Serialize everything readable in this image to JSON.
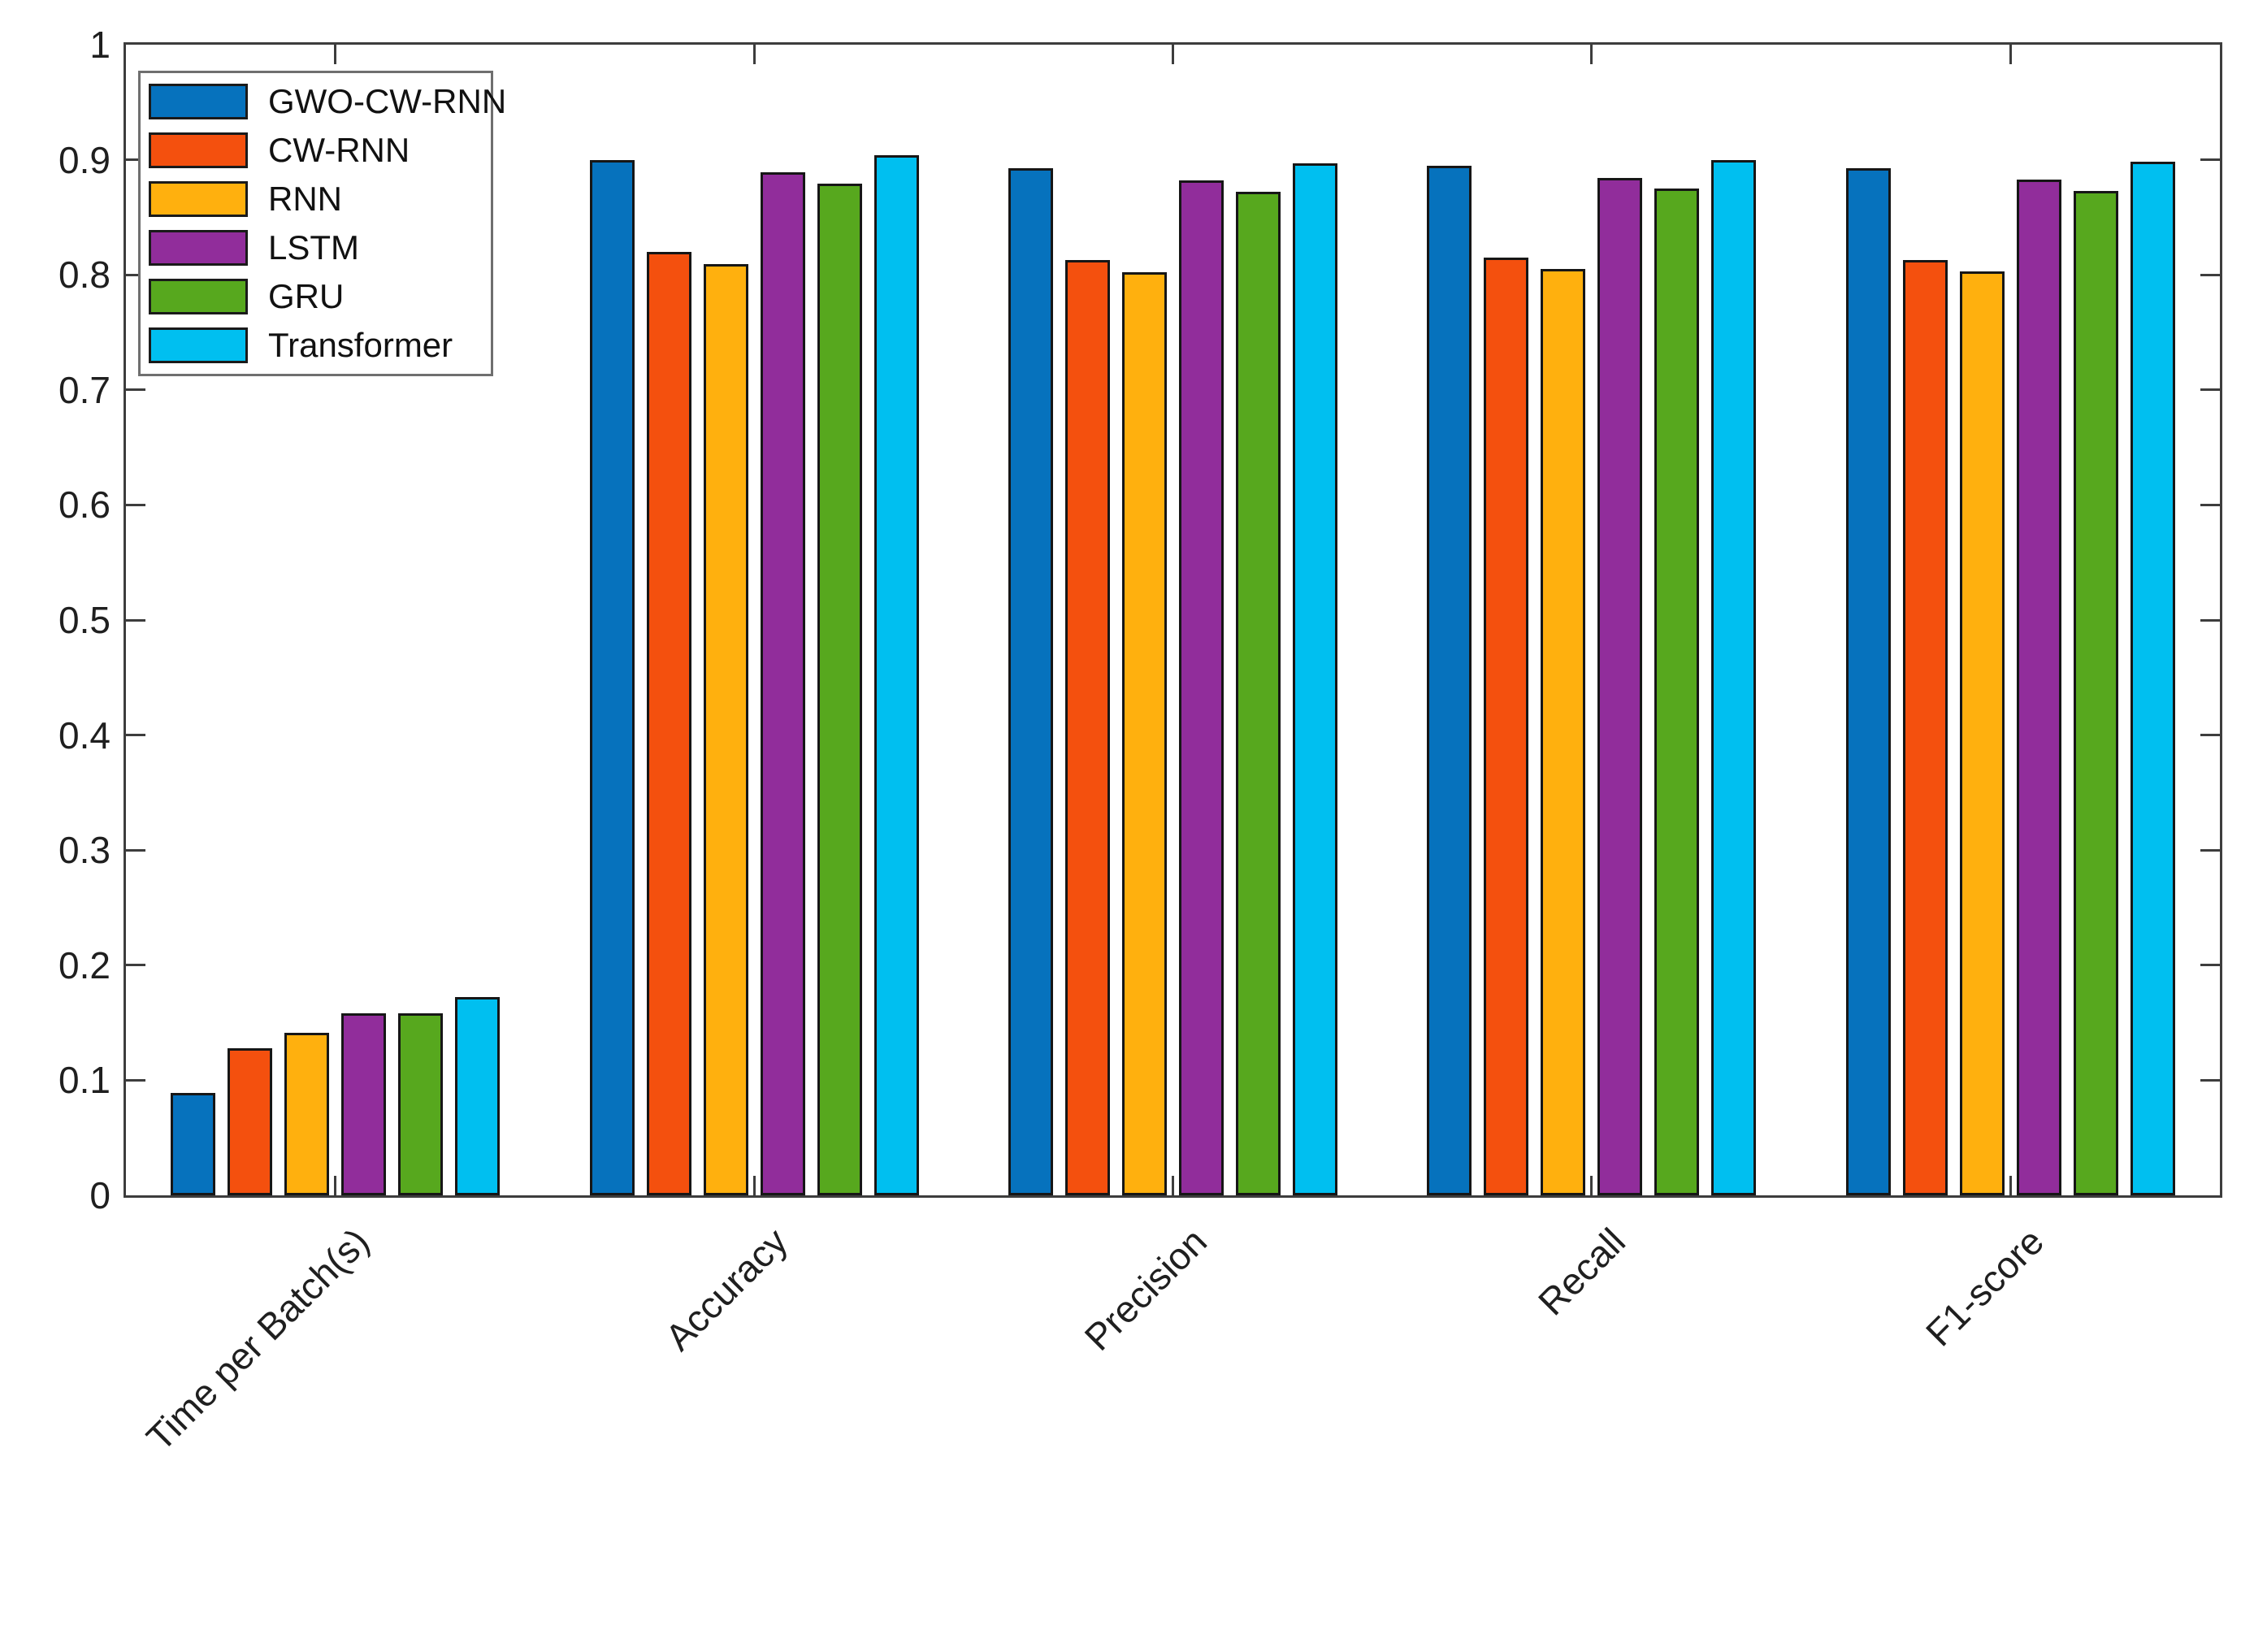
{
  "figure": {
    "background": "#ffffff",
    "axis_color": "#3d3d3d",
    "text_color": "#1f1f1f",
    "bar_edge_color": "#161616",
    "legend_border_color": "#6f6f6f"
  },
  "chart_data": {
    "type": "bar",
    "title": "",
    "xlabel": "",
    "ylabel": "",
    "grid": false,
    "legend_position": "top-left",
    "ylim": [
      0,
      1
    ],
    "yticks": [
      0,
      0.1,
      0.2,
      0.3,
      0.4,
      0.5,
      0.6,
      0.7,
      0.8,
      0.9,
      1
    ],
    "ytick_labels": [
      "0",
      "0.1",
      "0.2",
      "0.3",
      "0.4",
      "0.5",
      "0.6",
      "0.7",
      "0.8",
      "0.9",
      "1"
    ],
    "categories": [
      "Time per Batch(s)",
      "Accuracy",
      "Precision",
      "Recall",
      "F1-score"
    ],
    "series": [
      {
        "name": "GWO-CW-RNN",
        "color": "#0672BD",
        "values": [
          0.089,
          0.9,
          0.893,
          0.895,
          0.893
        ]
      },
      {
        "name": "CW-RNN",
        "color": "#F4500E",
        "values": [
          0.128,
          0.82,
          0.813,
          0.815,
          0.813
        ]
      },
      {
        "name": "RNN",
        "color": "#FFB00E",
        "values": [
          0.141,
          0.809,
          0.802,
          0.805,
          0.803
        ]
      },
      {
        "name": "LSTM",
        "color": "#912D9B",
        "values": [
          0.158,
          0.889,
          0.882,
          0.884,
          0.883
        ]
      },
      {
        "name": "GRU",
        "color": "#57A81E",
        "values": [
          0.158,
          0.879,
          0.872,
          0.875,
          0.873
        ]
      },
      {
        "name": "Transformer",
        "color": "#00BFF0",
        "values": [
          0.172,
          0.904,
          0.897,
          0.9,
          0.898
        ]
      }
    ]
  }
}
